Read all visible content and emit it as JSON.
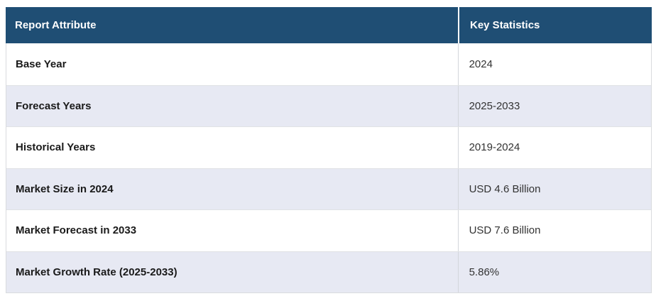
{
  "table": {
    "columns": [
      {
        "label": "Report Attribute"
      },
      {
        "label": "Key Statistics"
      }
    ],
    "rows": [
      {
        "attribute": "Base Year",
        "value": "2024"
      },
      {
        "attribute": "Forecast Years",
        "value": "2025-2033"
      },
      {
        "attribute": "Historical Years",
        "value": "2019-2024"
      },
      {
        "attribute": "Market Size in 2024",
        "value": "USD 4.6 Billion"
      },
      {
        "attribute": "Market Forecast in 2033",
        "value": "USD 7.6 Billion"
      },
      {
        "attribute": "Market Growth Rate (2025-2033)",
        "value": "5.86%"
      }
    ],
    "colors": {
      "header_background": "#1f4e74",
      "header_text": "#ffffff",
      "alt_row_background": "#e7e9f3",
      "row_background": "#ffffff",
      "border": "#d9dbde",
      "attribute_text": "#1a1a1a",
      "value_text": "#333333"
    }
  }
}
